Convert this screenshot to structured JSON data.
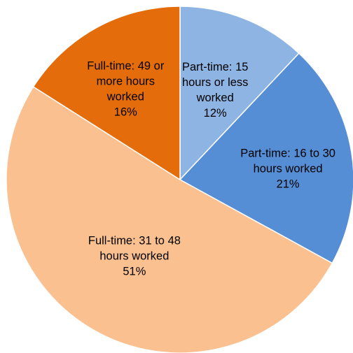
{
  "chart_data": {
    "type": "pie",
    "start_angle_deg": 0,
    "direction": "clockwise",
    "legend": "none",
    "slices": [
      {
        "label_lines": [
          "Part-time: 15",
          "hours or less",
          "worked"
        ],
        "percent_label": "12%",
        "value": 12,
        "color": "#8EB4E3"
      },
      {
        "label_lines": [
          "Part-time: 16 to 30",
          "hours worked"
        ],
        "percent_label": "21%",
        "value": 21,
        "color": "#558ED5"
      },
      {
        "label_lines": [
          "Full-time: 31 to 48",
          "hours worked"
        ],
        "percent_label": "51%",
        "value": 51,
        "color": "#FAC090"
      },
      {
        "label_lines": [
          "Full-time: 49 or",
          "more hours",
          "worked"
        ],
        "percent_label": "16%",
        "value": 16,
        "color": "#E46C0A"
      }
    ]
  }
}
